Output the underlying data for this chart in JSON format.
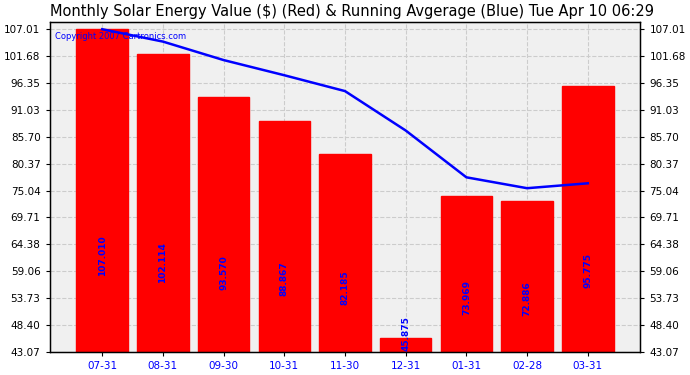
{
  "title": "Monthly Solar Energy Value ($) (Red) & Running Avgerage (Blue) Tue Apr 10 06:29",
  "copyright": "Copyright 2007 Cartronics.com",
  "categories": [
    "07-31",
    "08-31",
    "09-30",
    "10-31",
    "11-30",
    "12-31",
    "01-31",
    "02-28",
    "03-31"
  ],
  "bar_values": [
    107.01,
    102.114,
    93.57,
    88.867,
    82.185,
    45.875,
    73.969,
    72.886,
    95.775
  ],
  "bar_labels": [
    "107.010",
    "102.114",
    "93.570",
    "88.867",
    "82.185",
    "45.875",
    "73.969",
    "72.886",
    "95.775"
  ],
  "running_avg": [
    107.01,
    104.562,
    100.898,
    97.89,
    94.749,
    86.937,
    77.657,
    75.5,
    76.472
  ],
  "bar_color": "#ff0000",
  "line_color": "#0000ff",
  "fig_bg_color": "#ffffff",
  "plot_bg_color": "#f0f0f0",
  "ylim_min": 43.07,
  "ylim_max": 108.5,
  "yticks": [
    43.07,
    48.4,
    53.73,
    59.06,
    64.38,
    69.71,
    75.04,
    80.37,
    85.7,
    91.03,
    96.35,
    101.68,
    107.01
  ],
  "grid_color": "#cccccc",
  "title_fontsize": 10.5,
  "label_fontsize": 7.5,
  "bar_label_fontsize": 6.5,
  "bar_label_color": "#0000ff"
}
